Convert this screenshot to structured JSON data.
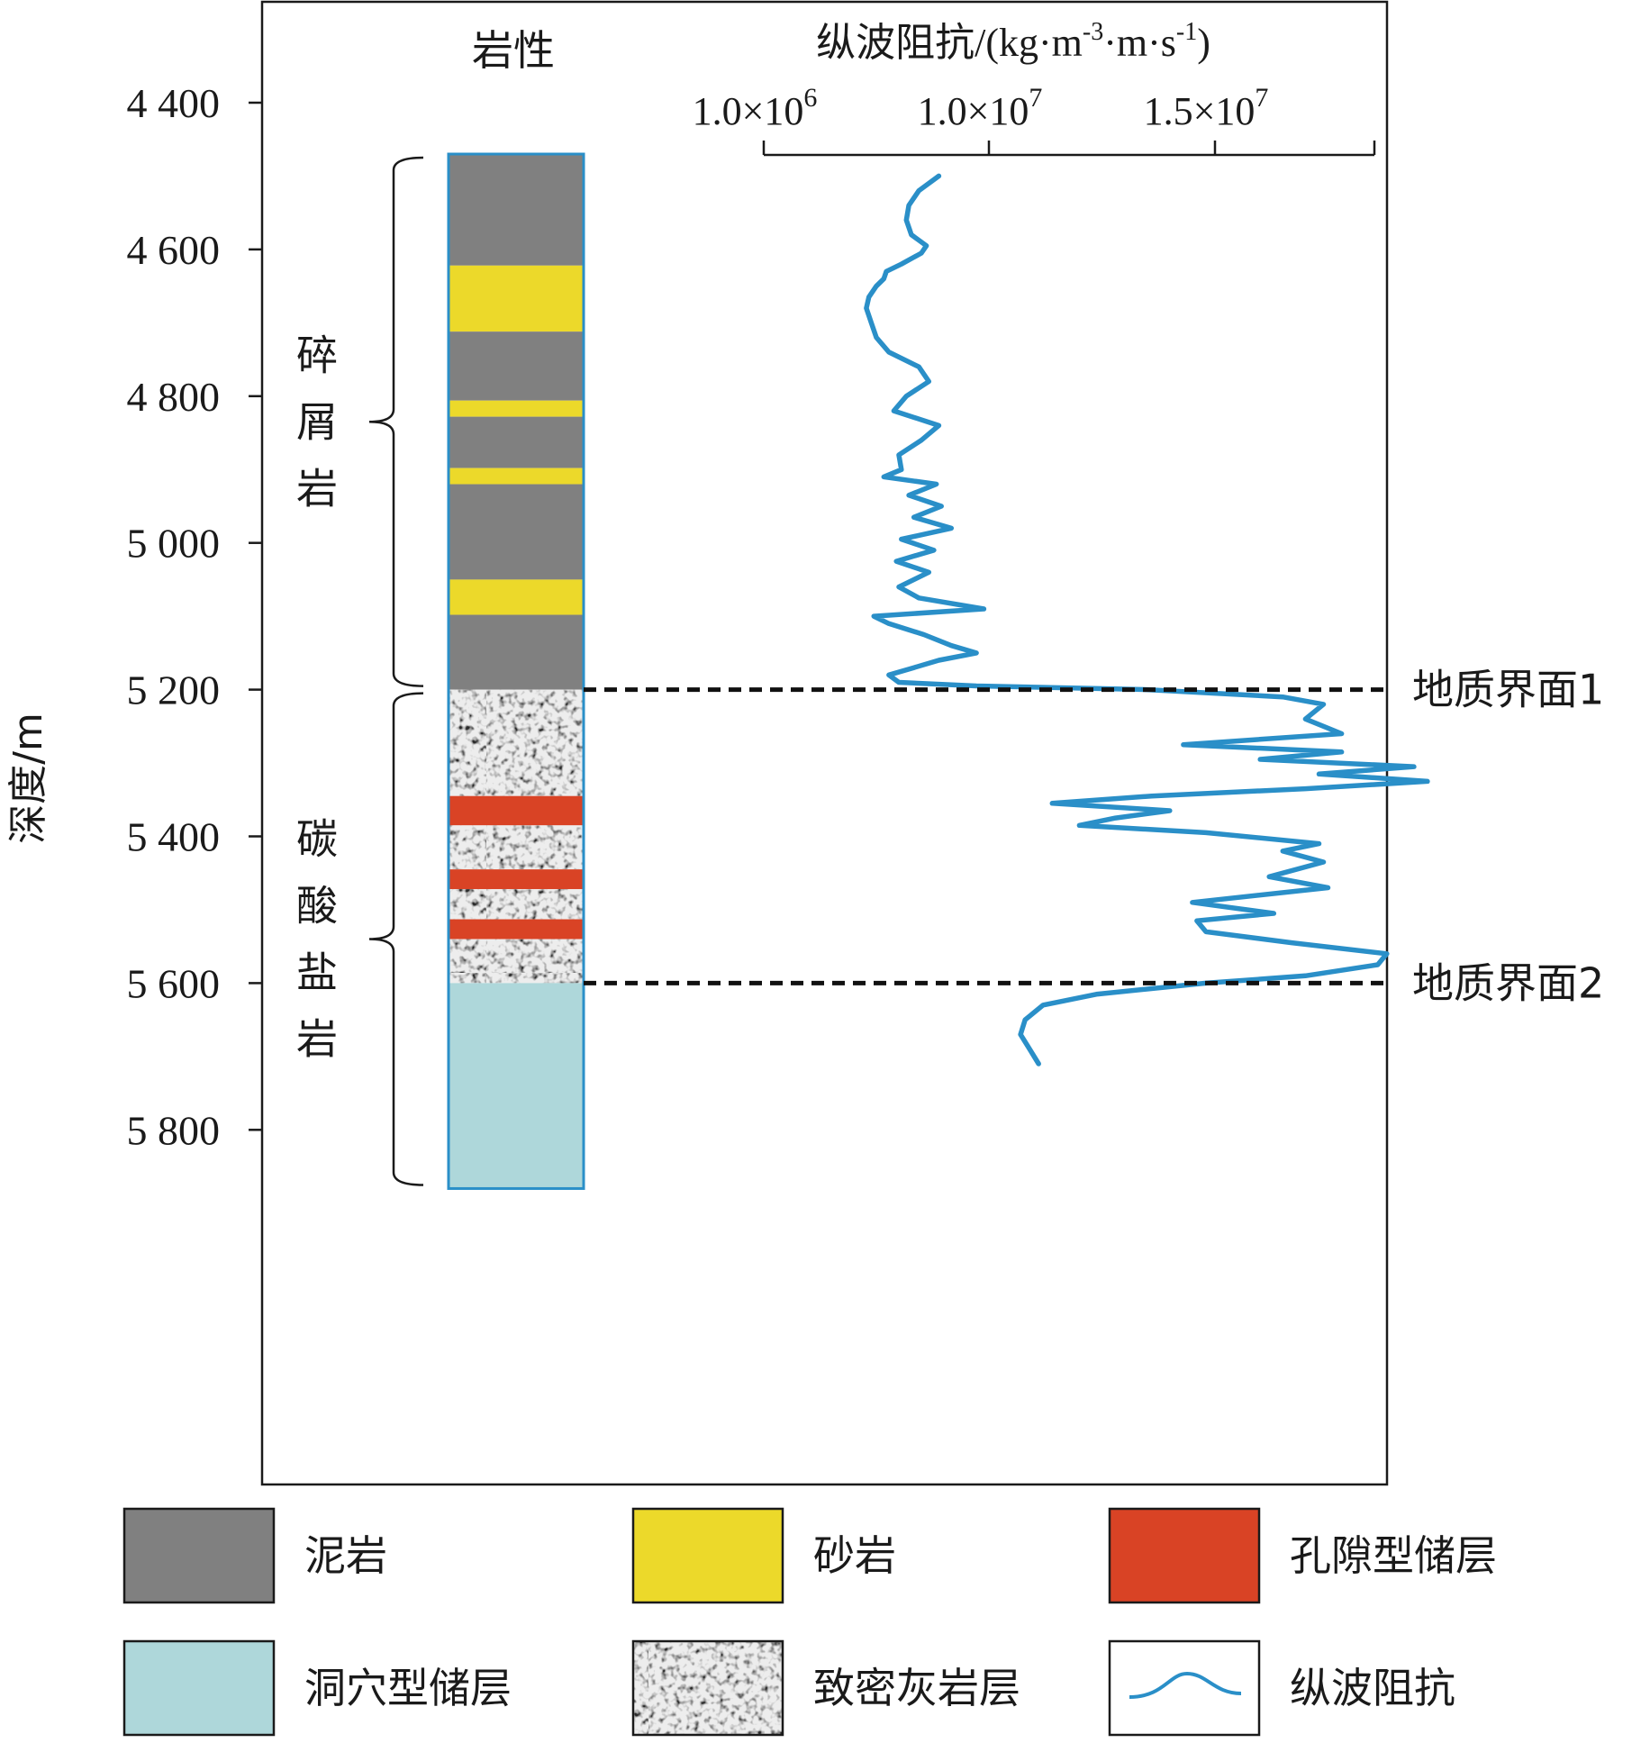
{
  "chart_data": {
    "type": "line",
    "ylabel": "深度/m",
    "depth_axis": {
      "range": [
        4300,
        5900
      ],
      "ticks": [
        4400,
        4600,
        4800,
        5000,
        5200,
        5400,
        5600,
        5800
      ],
      "tick_labels": [
        "4 400",
        "4 600",
        "4 800",
        "5 000",
        "5 200",
        "5 400",
        "5 600",
        "5 800"
      ]
    },
    "lithology_column": {
      "title": "岩性",
      "layers": [
        {
          "top": 4470,
          "bottom": 4622,
          "type": "mudstone"
        },
        {
          "top": 4622,
          "bottom": 4712,
          "type": "sandstone"
        },
        {
          "top": 4712,
          "bottom": 4806,
          "type": "mudstone"
        },
        {
          "top": 4806,
          "bottom": 4828,
          "type": "sandstone"
        },
        {
          "top": 4828,
          "bottom": 4898,
          "type": "mudstone"
        },
        {
          "top": 4898,
          "bottom": 4920,
          "type": "sandstone"
        },
        {
          "top": 4920,
          "bottom": 5050,
          "type": "mudstone"
        },
        {
          "top": 5050,
          "bottom": 5098,
          "type": "sandstone"
        },
        {
          "top": 5098,
          "bottom": 5200,
          "type": "mudstone"
        },
        {
          "top": 5200,
          "bottom": 5345,
          "type": "tight_limestone"
        },
        {
          "top": 5345,
          "bottom": 5385,
          "type": "pore_reservoir"
        },
        {
          "top": 5385,
          "bottom": 5445,
          "type": "tight_limestone"
        },
        {
          "top": 5445,
          "bottom": 5472,
          "type": "pore_reservoir"
        },
        {
          "top": 5472,
          "bottom": 5513,
          "type": "tight_limestone"
        },
        {
          "top": 5513,
          "bottom": 5540,
          "type": "pore_reservoir"
        },
        {
          "top": 5540,
          "bottom": 5600,
          "type": "tight_limestone"
        },
        {
          "top": 5600,
          "bottom": 5880,
          "type": "cave_reservoir"
        }
      ]
    },
    "intervals": [
      {
        "label": "碎屑岩",
        "top": 4470,
        "bottom": 5200
      },
      {
        "label": "碳酸盐岩",
        "top": 5200,
        "bottom": 5880
      }
    ],
    "impedance_axis": {
      "title": "纵波阻抗/(kg·m-3·m·s-1)",
      "ticks": [
        {
          "value": 1000000,
          "mantissa": "1.0×10",
          "exp": "6"
        },
        {
          "value": 10000000,
          "mantissa": "1.0×10",
          "exp": "7"
        },
        {
          "value": 15000000,
          "mantissa": "1.5×10",
          "exp": "7"
        }
      ]
    },
    "series": [
      {
        "name": "纵波阻抗",
        "color": "#2a8fc8",
        "depth": [
          4500,
          4520,
          4540,
          4560,
          4580,
          4595,
          4605,
          4620,
          4630,
          4640,
          4650,
          4665,
          4680,
          4700,
          4720,
          4740,
          4760,
          4780,
          4800,
          4820,
          4840,
          4860,
          4880,
          4900,
          4910,
          4920,
          4935,
          4950,
          4965,
          4980,
          4995,
          5010,
          5025,
          5040,
          5060,
          5075,
          5090,
          5100,
          5110,
          5125,
          5140,
          5150,
          5160,
          5170,
          5180,
          5190,
          5195,
          5200,
          5210,
          5220,
          5240,
          5260,
          5275,
          5285,
          5295,
          5305,
          5315,
          5325,
          5335,
          5345,
          5355,
          5365,
          5375,
          5385,
          5395,
          5410,
          5420,
          5435,
          5455,
          5470,
          5490,
          5505,
          5515,
          5530,
          5545,
          5560,
          5575,
          5590,
          5600,
          5615,
          5630,
          5650,
          5670,
          5690,
          5710
        ],
        "values": [
          8000000,
          7200000,
          6800000,
          6700000,
          6900000,
          7500000,
          7300000,
          6500000,
          5900000,
          5800000,
          5500000,
          5200000,
          5100000,
          5300000,
          5500000,
          6000000,
          7200000,
          7600000,
          6700000,
          6200000,
          8000000,
          7300000,
          6400000,
          6500000,
          5800000,
          7900000,
          6800000,
          8100000,
          7000000,
          8500000,
          6500000,
          7800000,
          6300000,
          7600000,
          6400000,
          7200000,
          9800000,
          5400000,
          6000000,
          7400000,
          8500000,
          9500000,
          8000000,
          7000000,
          6000000,
          6400000,
          9500000,
          13500000,
          16500000,
          17400000,
          17000000,
          17800000,
          14300000,
          17800000,
          16000000,
          19400000,
          17300000,
          19700000,
          17000000,
          13600000,
          11400000,
          14000000,
          12800000,
          12000000,
          14800000,
          17300000,
          16500000,
          17400000,
          16200000,
          17500000,
          14500000,
          16300000,
          14600000,
          14800000,
          16700000,
          18800000,
          18600000,
          17000000,
          14800000,
          12400000,
          11200000,
          10800000,
          10700000,
          10900000,
          11100000
        ]
      }
    ],
    "boundaries": [
      {
        "depth": 5200,
        "label": "地质界面1"
      },
      {
        "depth": 5600,
        "label": "地质界面2"
      }
    ],
    "legend": {
      "placement": "bottom",
      "items": [
        {
          "label": "泥岩",
          "type": "mudstone"
        },
        {
          "label": "砂岩",
          "type": "sandstone"
        },
        {
          "label": "孔隙型储层",
          "type": "pore_reservoir"
        },
        {
          "label": "洞穴型储层",
          "type": "cave_reservoir"
        },
        {
          "label": "致密灰岩层",
          "type": "tight_limestone"
        },
        {
          "label": "纵波阻抗",
          "type": "line"
        }
      ]
    },
    "colors": {
      "mudstone": "#808080",
      "sandstone": "#ecd92a",
      "pore_reservoir": "#d94325",
      "cave_reservoir": "#aed7da",
      "tight_limestone": "#9a9a9a",
      "column_border": "#2a8fc8",
      "curve": "#2a8fc8"
    }
  }
}
